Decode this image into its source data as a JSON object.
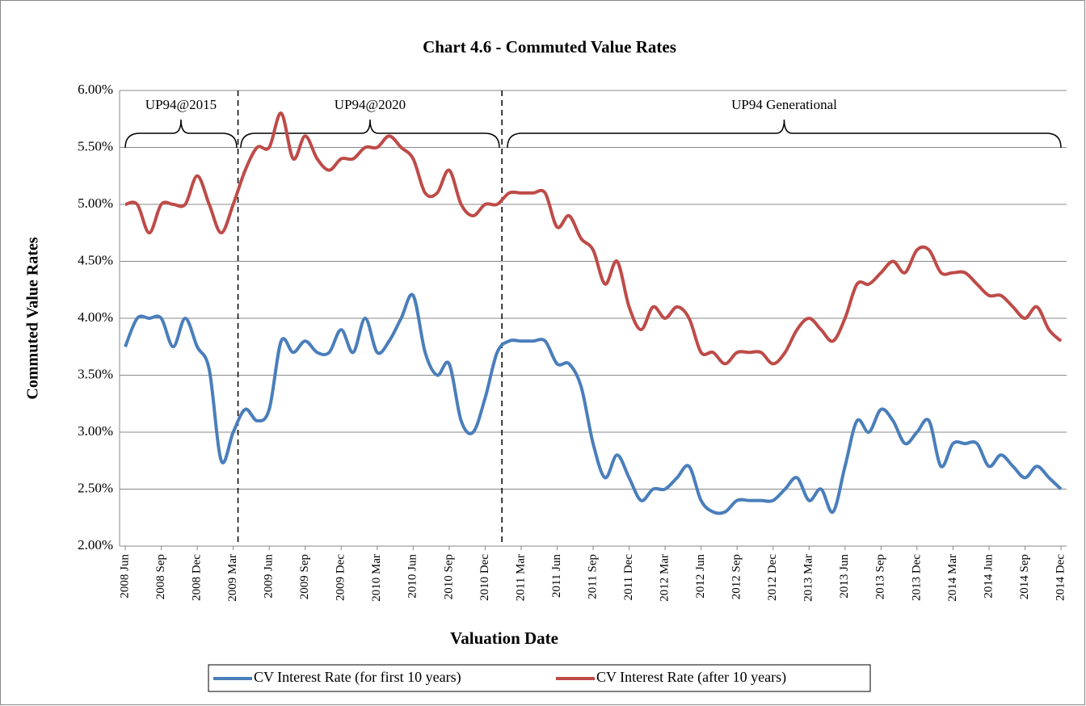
{
  "chart_data": {
    "type": "line",
    "title": "Chart 4.6 - Commuted Value Rates",
    "x_label": "Valuation Date",
    "y_label": "Commuted Value Rates",
    "annotations": [
      "UP94@2015",
      "UP94@2020",
      "UP94 Generational"
    ],
    "categories": [
      "2008 Jun",
      null,
      null,
      "2008 Sep",
      null,
      null,
      "2008 Dec",
      null,
      null,
      "2009 Mar",
      null,
      null,
      "2009 Jun",
      null,
      null,
      "2009 Sep",
      null,
      null,
      "2009 Dec",
      null,
      null,
      "2010 Mar",
      null,
      null,
      "2010 Jun",
      null,
      null,
      "2010 Sep",
      null,
      null,
      "2010 Dec",
      null,
      null,
      "2011 Mar",
      null,
      null,
      "2011 Jun",
      null,
      null,
      "2011 Sep",
      null,
      null,
      "2011 Dec",
      null,
      null,
      "2012 Mar",
      null,
      null,
      "2012 Jun",
      null,
      null,
      "2012 Sep",
      null,
      null,
      "2012 Dec",
      null,
      null,
      "2013 Mar",
      null,
      null,
      "2013 Jun",
      null,
      null,
      "2013 Sep",
      null,
      null,
      "2013 Dec",
      null,
      null,
      "2014 Mar",
      null,
      null,
      "2014 Jun",
      null,
      null,
      "2014 Sep",
      null,
      null,
      "2014 Dec"
    ],
    "series": [
      {
        "name": "CV Interest Rate (for first 10 years)",
        "color": "#4a7ebb",
        "values": [
          3.75,
          4.0,
          4.0,
          4.0,
          3.75,
          4.0,
          3.75,
          3.55,
          2.75,
          3.0,
          3.2,
          3.1,
          3.2,
          3.8,
          3.7,
          3.8,
          3.7,
          3.7,
          3.9,
          3.7,
          4.0,
          3.7,
          3.8,
          4.0,
          4.2,
          3.7,
          3.5,
          3.6,
          3.1,
          3.0,
          3.3,
          3.7,
          3.8,
          3.8,
          3.8,
          3.8,
          3.6,
          3.6,
          3.4,
          2.9,
          2.6,
          2.8,
          2.6,
          2.4,
          2.5,
          2.5,
          2.6,
          2.7,
          2.4,
          2.3,
          2.3,
          2.4,
          2.4,
          2.4,
          2.4,
          2.5,
          2.6,
          2.4,
          2.5,
          2.3,
          2.7,
          3.1,
          3.0,
          3.2,
          3.1,
          2.9,
          3.0,
          3.1,
          2.7,
          2.9,
          2.9,
          2.9,
          2.7,
          2.8,
          2.7,
          2.6,
          2.7,
          2.6,
          2.5
        ]
      },
      {
        "name": "CV Interest Rate (after 10 years)",
        "color": "#be4b48",
        "values": [
          5.0,
          5.0,
          4.75,
          5.0,
          5.0,
          5.0,
          5.25,
          5.0,
          4.75,
          5.0,
          5.3,
          5.5,
          5.5,
          5.8,
          5.4,
          5.6,
          5.4,
          5.3,
          5.4,
          5.4,
          5.5,
          5.5,
          5.6,
          5.5,
          5.4,
          5.1,
          5.1,
          5.3,
          5.0,
          4.9,
          5.0,
          5.0,
          5.1,
          5.1,
          5.1,
          5.1,
          4.8,
          4.9,
          4.7,
          4.6,
          4.3,
          4.5,
          4.1,
          3.9,
          4.1,
          4.0,
          4.1,
          4.0,
          3.7,
          3.7,
          3.6,
          3.7,
          3.7,
          3.7,
          3.6,
          3.7,
          3.9,
          4.0,
          3.9,
          3.8,
          4.0,
          4.3,
          4.3,
          4.4,
          4.5,
          4.4,
          4.6,
          4.6,
          4.4,
          4.4,
          4.4,
          4.3,
          4.2,
          4.2,
          4.1,
          4.0,
          4.1,
          3.9,
          3.8
        ]
      }
    ],
    "ylim": [
      2,
      6
    ],
    "yticks": [
      {
        "value": 2,
        "label": "2.00%"
      },
      {
        "value": 2.5,
        "label": "2.50%"
      },
      {
        "value": 3,
        "label": "3.00%"
      },
      {
        "value": 3.5,
        "label": "3.50%"
      },
      {
        "value": 4,
        "label": "4.00%"
      },
      {
        "value": 4.5,
        "label": "4.50%"
      },
      {
        "value": 5,
        "label": "5.00%"
      },
      {
        "value": 5.5,
        "label": "5.50%"
      },
      {
        "value": 6,
        "label": "6.00%"
      }
    ],
    "grid": true,
    "legend": "bottom"
  }
}
